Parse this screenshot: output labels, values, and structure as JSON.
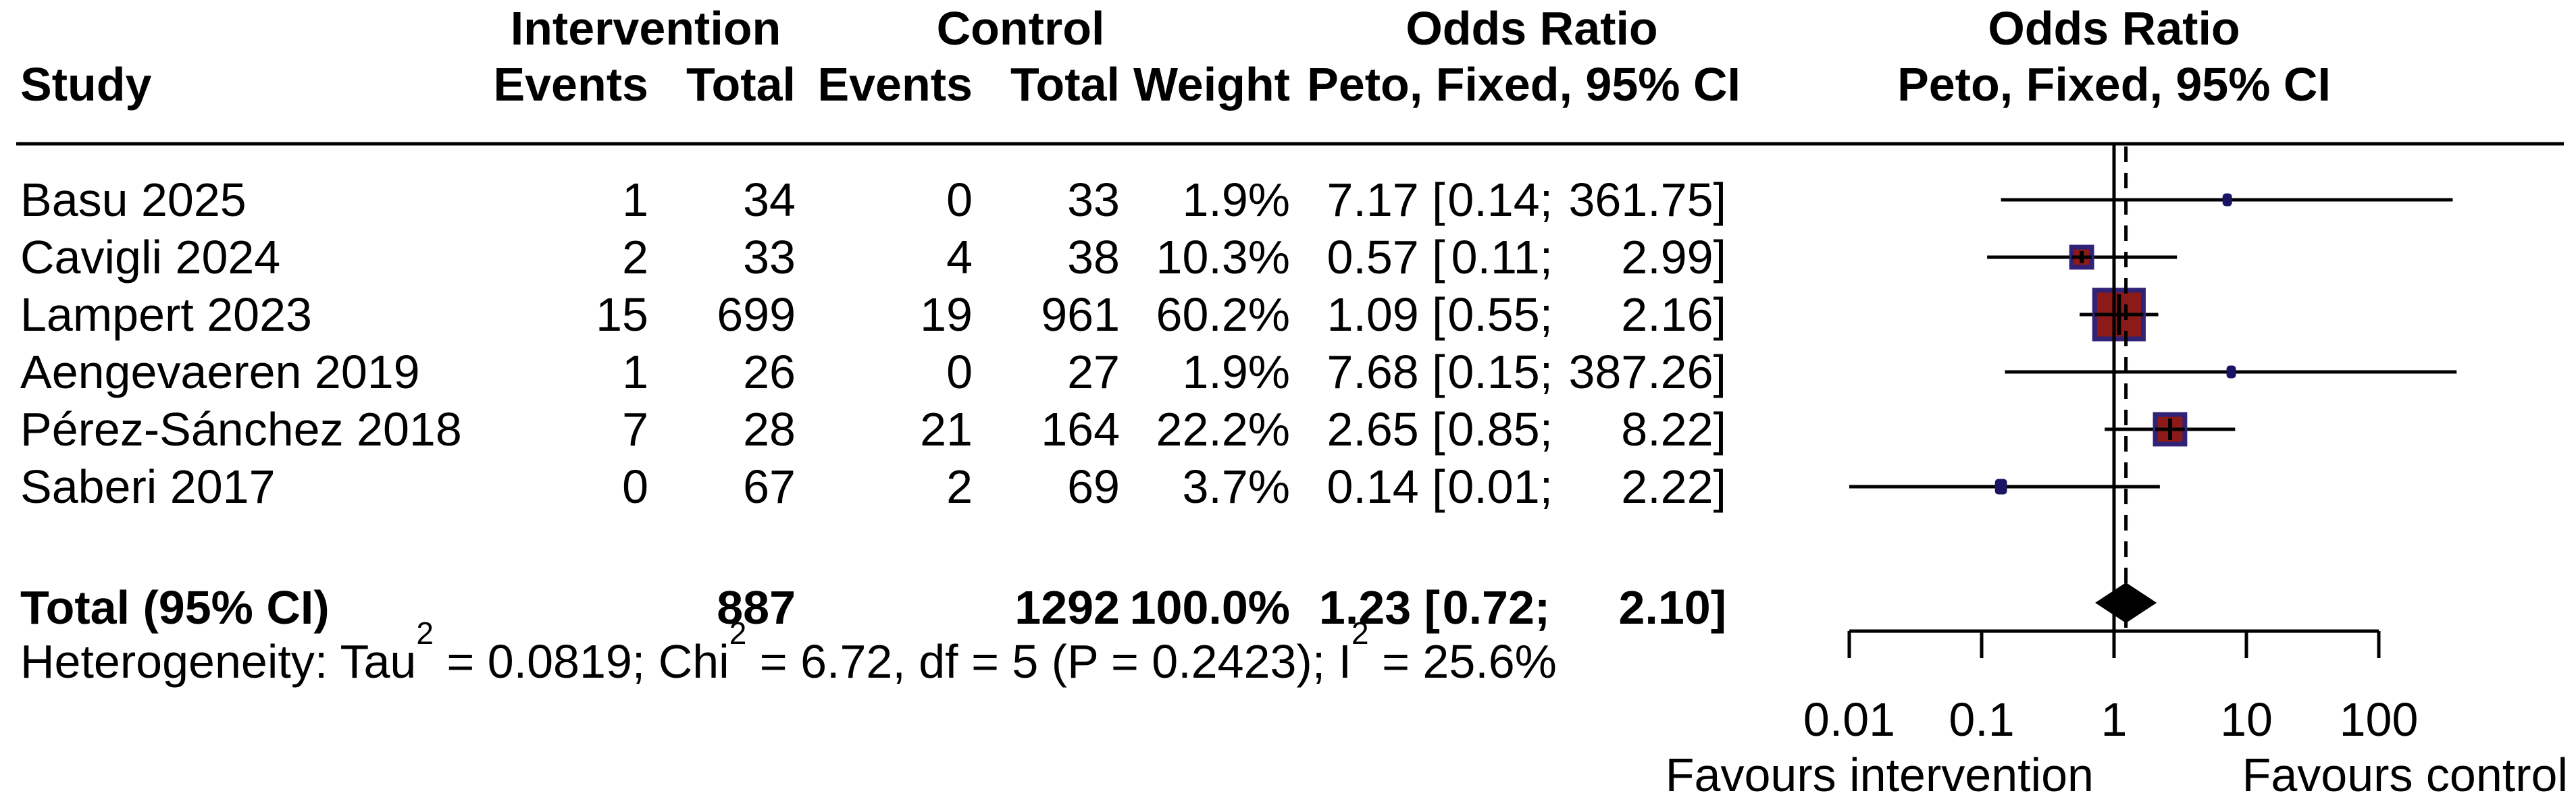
{
  "header": {
    "col_study": "Study",
    "group_intervention": "Intervention",
    "group_control": "Control",
    "or_text_col": "Odds Ratio",
    "or_plot_col": "Odds Ratio",
    "sub_events_int": "Events",
    "sub_total_int": "Total",
    "sub_events_ctrl": "Events",
    "sub_total_ctrl": "Total",
    "sub_weight": "Weight",
    "method_text_col": "Peto, Fixed, 95% CI",
    "method_plot_col": "Peto, Fixed, 95% CI"
  },
  "rows": [
    {
      "study": "Basu 2025",
      "int_events": "1",
      "int_total": "34",
      "ctrl_events": "0",
      "ctrl_total": "33",
      "weight": "1.9%",
      "or": "7.17",
      "ci_low": "0.14",
      "ci_high": "361.75"
    },
    {
      "study": "Cavigli 2024",
      "int_events": "2",
      "int_total": "33",
      "ctrl_events": "4",
      "ctrl_total": "38",
      "weight": "10.3%",
      "or": "0.57",
      "ci_low": "0.11",
      "ci_high": "2.99"
    },
    {
      "study": "Lampert 2023",
      "int_events": "15",
      "int_total": "699",
      "ctrl_events": "19",
      "ctrl_total": "961",
      "weight": "60.2%",
      "or": "1.09",
      "ci_low": "0.55",
      "ci_high": "2.16"
    },
    {
      "study": "Aengevaeren 2019",
      "int_events": "1",
      "int_total": "26",
      "ctrl_events": "0",
      "ctrl_total": "27",
      "weight": "1.9%",
      "or": "7.68",
      "ci_low": "0.15",
      "ci_high": "387.26"
    },
    {
      "study": "Pérez-Sánchez 2018",
      "int_events": "7",
      "int_total": "28",
      "ctrl_events": "21",
      "ctrl_total": "164",
      "weight": "22.2%",
      "or": "2.65",
      "ci_low": "0.85",
      "ci_high": "8.22"
    },
    {
      "study": "Saberi 2017",
      "int_events": "0",
      "int_total": "67",
      "ctrl_events": "2",
      "ctrl_total": "69",
      "weight": "3.7%",
      "or": "0.14",
      "ci_low": "0.01",
      "ci_high": "2.22"
    }
  ],
  "total_row": {
    "label": "Total (95% CI)",
    "int_total": "887",
    "ctrl_total": "1292",
    "weight": "100.0%",
    "or": "1.23",
    "ci_low": "0.72",
    "ci_high": "2.10"
  },
  "heterogeneity": [
    "Heterogeneity: Tau",
    "2",
    " = 0.0819; Chi",
    "2",
    " = 6.72, df = 5 (P = 0.2423); I",
    "2",
    " = 25.6%"
  ],
  "chart_data": {
    "type": "forest",
    "x_scale": "log",
    "ticks": [
      0.01,
      0.1,
      1,
      10,
      100
    ],
    "tick_labels": [
      "0.01",
      "0.1",
      "1",
      "10",
      "100"
    ],
    "xlim": [
      0.01,
      100
    ],
    "null_value": 1,
    "effect_label": "Odds Ratio",
    "method_label": "Peto, Fixed, 95% CI",
    "studies": [
      {
        "name": "Basu 2025",
        "or": 7.17,
        "low": 0.14,
        "high": 361.75,
        "weight_pct": 1.9
      },
      {
        "name": "Cavigli 2024",
        "or": 0.57,
        "low": 0.11,
        "high": 2.99,
        "weight_pct": 10.3
      },
      {
        "name": "Lampert 2023",
        "or": 1.09,
        "low": 0.55,
        "high": 2.16,
        "weight_pct": 60.2
      },
      {
        "name": "Aengevaeren 2019",
        "or": 7.68,
        "low": 0.15,
        "high": 387.26,
        "weight_pct": 1.9
      },
      {
        "name": "Pérez-Sánchez 2018",
        "or": 2.65,
        "low": 0.85,
        "high": 8.22,
        "weight_pct": 22.2
      },
      {
        "name": "Saberi 2017",
        "or": 0.14,
        "low": 0.01,
        "high": 2.22,
        "weight_pct": 3.7
      }
    ],
    "pooled": {
      "or": 1.23,
      "low": 0.72,
      "high": 2.1,
      "weight_pct": 100.0
    },
    "pooled_line_style": "dashed",
    "favours_left": "Favours intervention",
    "favours_right": "Favours control",
    "colors": {
      "square_fill": "#8b1a18",
      "square_border": "#2f2277",
      "small_marker": "#1b1464",
      "diamond": "#000000",
      "line": "#000000"
    }
  }
}
